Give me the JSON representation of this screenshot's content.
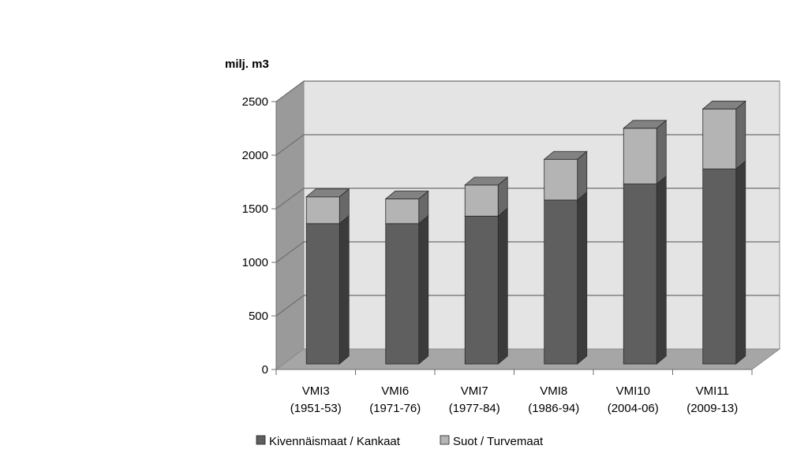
{
  "chart_data": {
    "type": "bar",
    "stacked": true,
    "three_d": true,
    "ylabel": "milj. m3",
    "ylim": [
      0,
      2500
    ],
    "yticks": [
      0,
      500,
      1000,
      1500,
      2000,
      2500
    ],
    "grid": true,
    "legend_position": "bottom",
    "categories": [
      [
        "VMI3",
        "(1951-53)"
      ],
      [
        "VMI6",
        "(1971-76)"
      ],
      [
        "VMI7",
        "(1977-84)"
      ],
      [
        "VMI8",
        "(1986-94)"
      ],
      [
        "VMI10",
        "(2004-06)"
      ],
      [
        "VMI11",
        "(2009-13)"
      ]
    ],
    "series": [
      {
        "name": "Kivennäismaat / Kankaat",
        "values": [
          1310,
          1310,
          1380,
          1530,
          1680,
          1820
        ],
        "color": "#5f5f5f"
      },
      {
        "name": "Suot / Turvemaat",
        "values": [
          250,
          230,
          290,
          380,
          520,
          560
        ],
        "color": "#b4b4b4"
      }
    ]
  }
}
